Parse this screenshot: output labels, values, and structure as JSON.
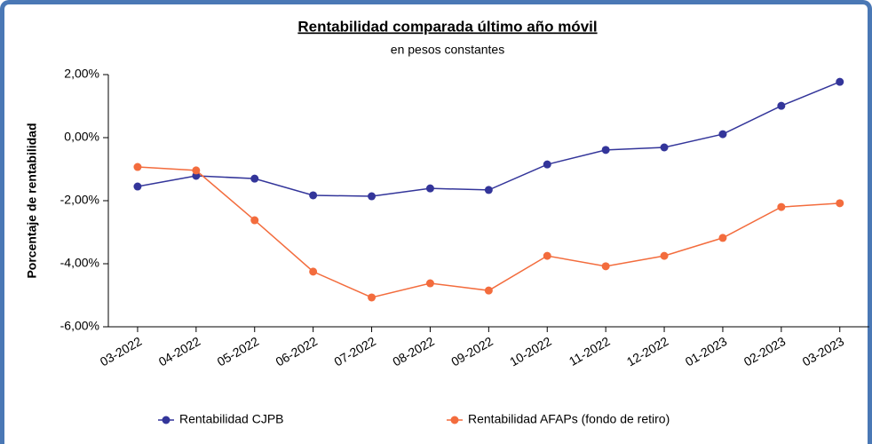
{
  "chart_data": {
    "type": "line",
    "title": "Rentabilidad comparada último año móvil",
    "subtitle": "en pesos constantes",
    "y_label": "Porcentaje de rentabilidad",
    "categories": [
      "03-2022",
      "04-2022",
      "05-2022",
      "06-2022",
      "07-2022",
      "08-2022",
      "09-2022",
      "10-2022",
      "11-2022",
      "12-2022",
      "01-2023",
      "02-2023",
      "03-2023"
    ],
    "series": [
      {
        "name": "Rentabilidad CJPB",
        "color": "#33359a",
        "values": [
          -1.55,
          -1.21,
          -1.3,
          -1.83,
          -1.86,
          -1.61,
          -1.66,
          -0.85,
          -0.39,
          -0.31,
          0.11,
          1.01,
          1.77
        ]
      },
      {
        "name": "Rentabilidad AFAPs (fondo de retiro)",
        "color": "#f36c3d",
        "values": [
          -0.93,
          -1.04,
          -2.62,
          -4.25,
          -5.07,
          -4.62,
          -4.85,
          -3.75,
          -4.08,
          -3.75,
          -3.18,
          -2.2,
          -2.08
        ]
      }
    ],
    "ylim": [
      -6,
      2
    ],
    "yticks": [
      {
        "value": -6,
        "label": "-6,00%"
      },
      {
        "value": -4,
        "label": "-4,00%"
      },
      {
        "value": -2,
        "label": "-2,00%"
      },
      {
        "value": 0,
        "label": "0,00%"
      },
      {
        "value": 2,
        "label": "2,00%"
      }
    ],
    "grid": false,
    "legend": "bottom"
  }
}
